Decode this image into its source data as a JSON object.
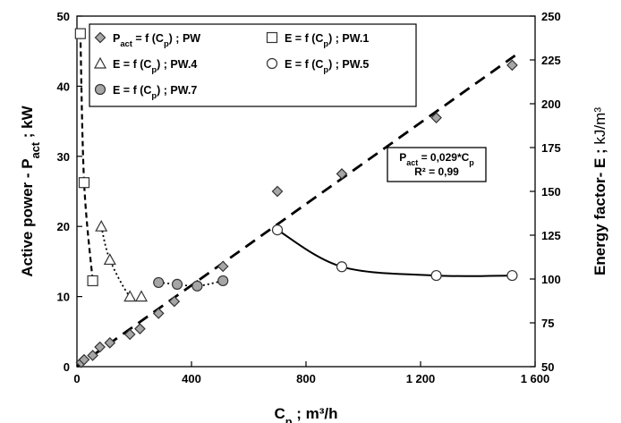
{
  "chart_data": {
    "type": "scatter",
    "x": {
      "label_base": "C",
      "label_sub": "p",
      "label_unit": " ; m³/h",
      "range": [
        0,
        1600
      ],
      "ticks": [
        0,
        400,
        800,
        1200,
        1600
      ],
      "tick_labels": [
        "0",
        "400",
        "800",
        "1 200",
        "1 600"
      ]
    },
    "y_left": {
      "label_base": "Active power - P",
      "label_sub": "act",
      "label_unit": " ; kW",
      "range": [
        0,
        50
      ],
      "ticks": [
        0,
        10,
        20,
        30,
        40,
        50
      ],
      "tick_labels": [
        "0",
        "10",
        "20",
        "30",
        "40",
        "50"
      ]
    },
    "y_right": {
      "label_base": "Energy  factor- E ;",
      "label_unit": "kJ/m³",
      "range": [
        50,
        250
      ],
      "ticks": [
        50,
        75,
        100,
        125,
        150,
        175,
        200,
        225,
        250
      ],
      "tick_labels": [
        "50",
        "75",
        "100",
        "125",
        "150",
        "175",
        "200",
        "225",
        "250"
      ]
    },
    "series": [
      {
        "name": "P_act = f (C_p) ; PW",
        "legend_parts": [
          "P",
          "act",
          " = f (C",
          "p",
          ") ; PW"
        ],
        "axis": "left",
        "marker": "diamond",
        "color": "#a6a6a6",
        "points": [
          [
            15,
            0.6
          ],
          [
            25,
            1.0
          ],
          [
            55,
            1.6
          ],
          [
            80,
            2.8
          ],
          [
            115,
            3.4
          ],
          [
            185,
            4.6
          ],
          [
            220,
            5.4
          ],
          [
            285,
            7.6
          ],
          [
            340,
            9.3
          ],
          [
            420,
            11.6
          ],
          [
            510,
            14.3
          ],
          [
            700,
            25.0
          ],
          [
            925,
            27.5
          ],
          [
            1255,
            35.5
          ],
          [
            1520,
            43.0
          ]
        ]
      },
      {
        "name": "E = f (C_p) ; PW.1",
        "legend_parts": [
          "E = f (C",
          "p",
          ") ; PW.1"
        ],
        "axis": "right",
        "marker": "square",
        "color": "#ffffff",
        "line": "dashed",
        "points": [
          [
            12,
            240
          ],
          [
            25,
            155
          ],
          [
            55,
            99
          ]
        ]
      },
      {
        "name": "E = f (C_p) ; PW.4",
        "legend_parts": [
          "E = f (C",
          "p",
          ") ; PW.4"
        ],
        "axis": "right",
        "marker": "triangle",
        "color": "#ffffff",
        "line": "dotted",
        "points": [
          [
            85,
            130
          ],
          [
            115,
            111
          ],
          [
            185,
            90
          ],
          [
            225,
            90
          ]
        ]
      },
      {
        "name": "E = f (C_p) ; PW.5",
        "legend_parts": [
          "E = f (C",
          "p",
          ") ; PW.5"
        ],
        "axis": "right",
        "marker": "circle",
        "color": "#ffffff",
        "line": "solid",
        "points": [
          [
            700,
            128
          ],
          [
            925,
            107
          ],
          [
            1255,
            102
          ],
          [
            1520,
            102
          ]
        ]
      },
      {
        "name": "E = f (C_p) ; PW.7",
        "legend_parts": [
          "E = f (C",
          "p",
          ") ; PW.7"
        ],
        "axis": "right",
        "marker": "circle",
        "color": "#a6a6a6",
        "line": "dotted",
        "points": [
          [
            285,
            98
          ],
          [
            350,
            97
          ],
          [
            420,
            96
          ],
          [
            510,
            99
          ]
        ]
      }
    ],
    "trendline": {
      "series": "P_act = f (C_p) ; PW",
      "slope": 0.029,
      "x_range": [
        0,
        1530
      ],
      "eq_parts": [
        "P",
        "act",
        " = 0,029*C",
        "p"
      ],
      "r2": "R² = 0,99"
    },
    "legend_placement": "top-left",
    "grid": false
  }
}
